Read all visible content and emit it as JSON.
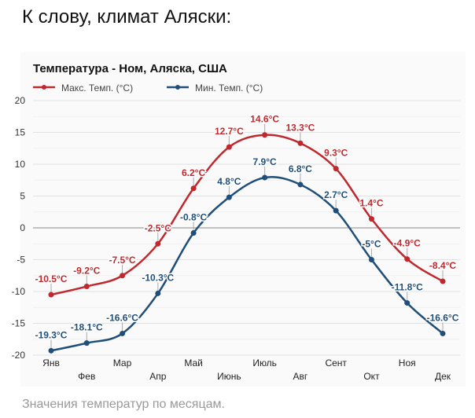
{
  "heading": "К слову, климат Аляски:",
  "caption": "Значения температур по месяцам.",
  "chart_data": {
    "type": "line",
    "title": "Температура - Ном, Аляска, США",
    "categories": [
      "Янв",
      "Фев",
      "Мар",
      "Апр",
      "Май",
      "Июнь",
      "Июль",
      "Авг",
      "Сент",
      "Окт",
      "Ноя",
      "Дек"
    ],
    "yticks": [
      "20",
      "15",
      "10",
      "5",
      "0",
      "-5",
      "-10",
      "-15",
      "-20"
    ],
    "ylim": [
      -20,
      20
    ],
    "grid": true,
    "legend": "top-left",
    "series": [
      {
        "name": "Макс. Темп. (°C)",
        "color": "#c0282d",
        "values": [
          -10.5,
          -9.2,
          -7.5,
          -2.5,
          6.2,
          12.7,
          14.6,
          13.3,
          9.3,
          1.4,
          -4.9,
          -8.4
        ],
        "labels": [
          "-10.5°C",
          "-9.2°C",
          "-7.5°C",
          "-2.5°C",
          "6.2°C",
          "12.7°C",
          "14.6°C",
          "13.3°C",
          "9.3°C",
          "1.4°C",
          "-4.9°C",
          "-8.4°C"
        ]
      },
      {
        "name": "Мин. Темп. (°C)",
        "color": "#1f4e79",
        "values": [
          -19.3,
          -18.1,
          -16.6,
          -10.3,
          -0.8,
          4.8,
          7.9,
          6.8,
          2.7,
          -5,
          -11.8,
          -16.6
        ],
        "labels": [
          "-19.3°C",
          "-18.1°C",
          "-16.6°C",
          "-10.3°C",
          "-0.8°C",
          "4.8°C",
          "7.9°C",
          "6.8°C",
          "2.7°C",
          "-5°C",
          "-11.8°C",
          "-16.6°C"
        ]
      }
    ]
  }
}
